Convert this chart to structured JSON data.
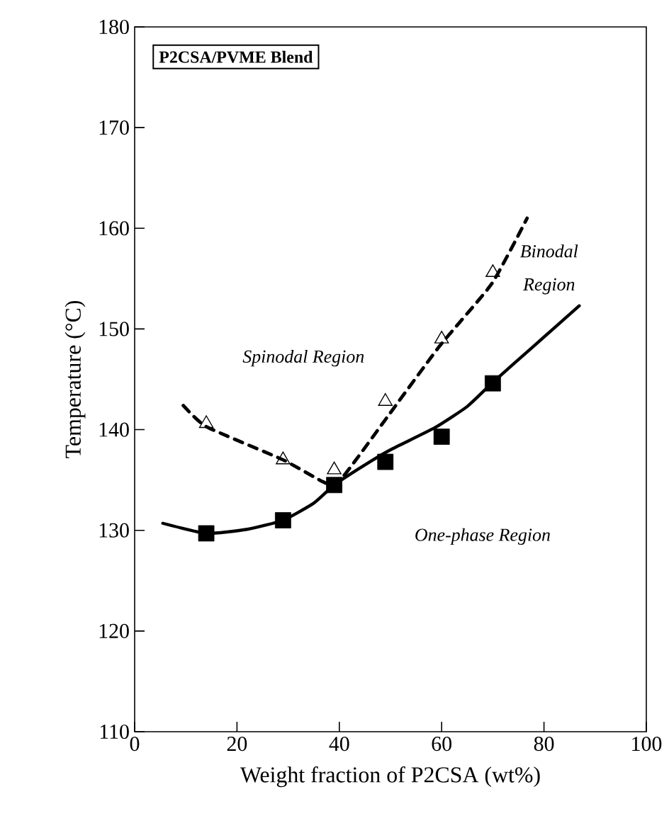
{
  "chart_data": {
    "type": "line",
    "title": "P2CSA/PVME Blend",
    "xlabel": "Weight fraction of P2CSA (wt%)",
    "ylabel": "Temperature (°C)",
    "xlim": [
      0,
      100
    ],
    "ylim": [
      110,
      180
    ],
    "xticks": [
      0,
      20,
      40,
      60,
      80,
      100
    ],
    "yticks": [
      110,
      120,
      130,
      140,
      150,
      160,
      170,
      180
    ],
    "grid": false,
    "series": [
      {
        "color": "#000000",
        "marker": "none",
        "line_style": "solid",
        "x": [
          5.5,
          14,
          22,
          29,
          35,
          39,
          45,
          50,
          58.7,
          65,
          70,
          78,
          86.9
        ],
        "values": [
          130.7,
          129.7,
          130.1,
          131,
          132.7,
          134.5,
          136.5,
          138,
          140.2,
          142.3,
          144.7,
          148.3,
          152.3
        ]
      },
      {
        "color": "#000000",
        "marker": "none",
        "line_style": "dashed",
        "x": [
          9.5,
          14,
          29,
          36.5,
          39.3,
          43.4,
          49.3,
          59.6,
          69.8,
          76.7
        ],
        "values": [
          142.4,
          140.3,
          137,
          134.9,
          134.5,
          137.1,
          141.2,
          148.3,
          154.5,
          161
        ]
      },
      {
        "type": "scatter",
        "color": "#000000",
        "marker": "square",
        "x": [
          14,
          29,
          39,
          49,
          60,
          70
        ],
        "values": [
          129.7,
          131,
          134.5,
          136.8,
          139.3,
          144.6
        ]
      },
      {
        "type": "scatter",
        "color": "#000000",
        "marker": "triangle",
        "x": [
          14,
          29,
          39,
          49,
          60,
          70
        ],
        "values": [
          140.6,
          137,
          136,
          142.8,
          149,
          155.6
        ]
      }
    ],
    "annotations": [
      "*Spinodal Region*",
      "*Binodal*",
      "*Region*",
      "*One-phase Region*"
    ]
  }
}
